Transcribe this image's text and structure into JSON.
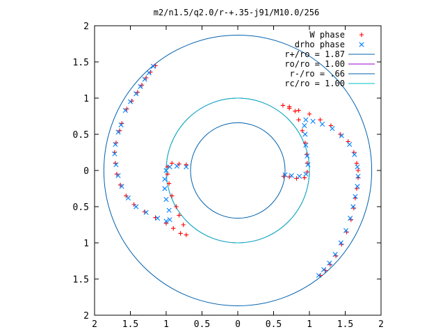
{
  "chart_data": {
    "type": "scatter",
    "title": "m2/n1.5/q2.0/r-+.35-j91/M10.0/256",
    "xlim": [
      -2,
      2
    ],
    "ylim": [
      -2,
      2
    ],
    "x_tick_values": [
      -2,
      -1.5,
      -1,
      -0.5,
      0,
      0.5,
      1,
      1.5,
      2
    ],
    "x_tick_labels": [
      "2",
      "1.5",
      "1",
      "0.5",
      "0",
      "0.5",
      "1",
      "1.5",
      "2"
    ],
    "y_tick_values": [
      2,
      1.5,
      1,
      0.5,
      0,
      -0.5,
      -1,
      -1.5,
      -2
    ],
    "y_tick_labels": [
      "2",
      "1.5",
      "1",
      "0.5",
      "0",
      "0.5",
      "1",
      "1.5",
      "2"
    ],
    "grid": false,
    "legend_position": "top-right",
    "series": [
      {
        "name": "W phase",
        "marker": "plus",
        "color": "#ff0000",
        "points": [
          [
            -1.15,
            1.45
          ],
          [
            -1.22,
            1.36
          ],
          [
            -1.28,
            1.28
          ],
          [
            -1.34,
            1.18
          ],
          [
            -1.4,
            1.08
          ],
          [
            -1.48,
            0.96
          ],
          [
            -1.55,
            0.85
          ],
          [
            -1.62,
            0.65
          ],
          [
            -1.65,
            0.55
          ],
          [
            -1.7,
            0.38
          ],
          [
            -1.72,
            0.25
          ],
          [
            -1.71,
            0.1
          ],
          [
            -1.69,
            -0.05
          ],
          [
            -1.64,
            -0.2
          ],
          [
            -1.56,
            -0.35
          ],
          [
            -1.45,
            -0.47
          ],
          [
            -1.3,
            -0.57
          ],
          [
            -1.15,
            -0.65
          ],
          [
            -1.0,
            -0.73
          ],
          [
            -0.9,
            -0.8
          ],
          [
            -0.8,
            -0.87
          ],
          [
            -0.72,
            -0.89
          ],
          [
            -0.76,
            -0.75
          ],
          [
            -0.82,
            -0.62
          ],
          [
            -0.86,
            -0.5
          ],
          [
            -0.92,
            -0.35
          ],
          [
            -0.96,
            -0.18
          ],
          [
            -0.98,
            -0.05
          ],
          [
            -0.98,
            0.05
          ],
          [
            -0.92,
            0.1
          ],
          [
            -0.82,
            0.09
          ],
          [
            -0.72,
            0.08
          ],
          [
            0.64,
            -0.08
          ],
          [
            0.72,
            -0.09
          ],
          [
            0.82,
            -0.11
          ],
          [
            0.93,
            -0.1
          ],
          [
            0.97,
            -0.02
          ],
          [
            0.97,
            0.1
          ],
          [
            0.96,
            0.22
          ],
          [
            0.94,
            0.38
          ],
          [
            0.9,
            0.55
          ],
          [
            0.85,
            0.7
          ],
          [
            0.8,
            0.82
          ],
          [
            0.72,
            0.88
          ],
          [
            0.63,
            0.9
          ],
          [
            0.72,
            0.86
          ],
          [
            0.85,
            0.83
          ],
          [
            1.0,
            0.78
          ],
          [
            1.15,
            0.7
          ],
          [
            1.3,
            0.62
          ],
          [
            1.43,
            0.5
          ],
          [
            1.54,
            0.4
          ],
          [
            1.62,
            0.25
          ],
          [
            1.66,
            0.1
          ],
          [
            1.68,
            0.0
          ],
          [
            1.68,
            -0.1
          ],
          [
            1.66,
            -0.25
          ],
          [
            1.64,
            -0.38
          ],
          [
            1.62,
            -0.52
          ],
          [
            1.58,
            -0.68
          ],
          [
            1.52,
            -0.85
          ],
          [
            1.45,
            -1.02
          ],
          [
            1.37,
            -1.18
          ],
          [
            1.29,
            -1.3
          ],
          [
            1.22,
            -1.38
          ],
          [
            1.15,
            -1.45
          ]
        ]
      },
      {
        "name": "drho phase",
        "marker": "cross",
        "color": "#0080ff",
        "points": [
          [
            -1.18,
            1.44
          ],
          [
            -1.24,
            1.35
          ],
          [
            -1.3,
            1.26
          ],
          [
            -1.36,
            1.16
          ],
          [
            -1.42,
            1.06
          ],
          [
            -1.5,
            0.95
          ],
          [
            -1.57,
            0.83
          ],
          [
            -1.63,
            0.63
          ],
          [
            -1.67,
            0.53
          ],
          [
            -1.71,
            0.36
          ],
          [
            -1.72,
            0.23
          ],
          [
            -1.7,
            0.08
          ],
          [
            -1.67,
            -0.07
          ],
          [
            -1.62,
            -0.22
          ],
          [
            -1.53,
            -0.38
          ],
          [
            -1.42,
            -0.5
          ],
          [
            -1.28,
            -0.58
          ],
          [
            -1.12,
            -0.66
          ],
          [
            -1.0,
            -0.7
          ],
          [
            -0.95,
            -0.68
          ],
          [
            -0.96,
            -0.55
          ],
          [
            -1.0,
            -0.4
          ],
          [
            -1.02,
            -0.25
          ],
          [
            -1.02,
            -0.12
          ],
          [
            -1.0,
            0.0
          ],
          [
            -0.95,
            0.05
          ],
          [
            -0.85,
            0.06
          ],
          [
            -0.72,
            0.05
          ],
          [
            0.66,
            -0.06
          ],
          [
            0.75,
            -0.07
          ],
          [
            0.86,
            -0.08
          ],
          [
            0.95,
            -0.05
          ],
          [
            0.98,
            0.08
          ],
          [
            0.97,
            0.2
          ],
          [
            0.95,
            0.35
          ],
          [
            0.94,
            0.5
          ],
          [
            0.93,
            0.62
          ],
          [
            0.95,
            0.7
          ],
          [
            1.05,
            0.68
          ],
          [
            1.18,
            0.64
          ],
          [
            1.32,
            0.58
          ],
          [
            1.45,
            0.48
          ],
          [
            1.56,
            0.36
          ],
          [
            1.63,
            0.22
          ],
          [
            1.67,
            0.05
          ],
          [
            1.68,
            -0.08
          ],
          [
            1.67,
            -0.22
          ],
          [
            1.64,
            -0.36
          ],
          [
            1.61,
            -0.5
          ],
          [
            1.57,
            -0.66
          ],
          [
            1.51,
            -0.83
          ],
          [
            1.44,
            -1.0
          ],
          [
            1.36,
            -1.16
          ],
          [
            1.28,
            -1.28
          ],
          [
            1.2,
            -1.37
          ],
          [
            1.13,
            -1.45
          ]
        ]
      }
    ],
    "circles": [
      {
        "name": "r+/ro = 1.87",
        "radius": 1.87,
        "color": "#0060ad"
      },
      {
        "name": "ro/ro = 1.00",
        "radius": 1.0,
        "color": "#9400d3"
      },
      {
        "name": "r-/ro = .66",
        "radius": 0.66,
        "color": "#0060ad"
      },
      {
        "name": "rc/ro = 1.00",
        "radius": 1.0,
        "color": "#00c0c0"
      }
    ]
  }
}
